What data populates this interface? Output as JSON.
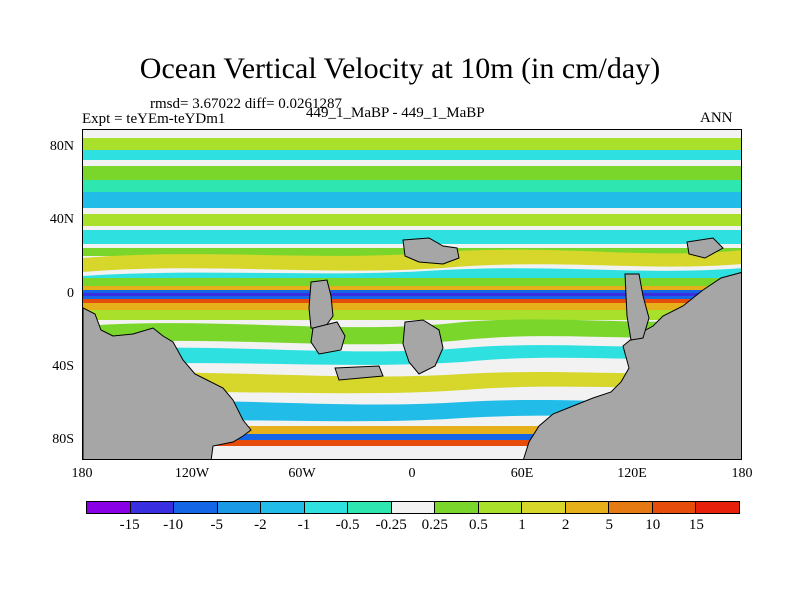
{
  "title": "Ocean Vertical Velocity at 10m (in cm/day)",
  "stats": "rmsd= 3.67022 diff= 0.0261287",
  "expt": "Expt = teYEm-teYDm1",
  "cases": "449_1_MaBP - 449_1_MaBP",
  "season": "ANN",
  "lat_ticks": [
    "80N",
    "40N",
    "0",
    "40S",
    "80S"
  ],
  "lon_ticks": [
    "180",
    "120W",
    "60W",
    "0",
    "60E",
    "120E",
    "180"
  ],
  "colorbar": {
    "colors": [
      "#8a00e6",
      "#3a2fe0",
      "#1466e6",
      "#1a9ae6",
      "#21bde8",
      "#2ee0e0",
      "#2ee6b0",
      "#f2f2f2",
      "#7ad62b",
      "#a8e02b",
      "#d6d62b",
      "#e6b01a",
      "#e67a12",
      "#e64c0a",
      "#e6200a"
    ],
    "labels": [
      "-15",
      "-10",
      "-5",
      "-2",
      "-1",
      "-0.5",
      "-0.25",
      "0.25",
      "0.5",
      "1",
      "2",
      "5",
      "10",
      "15"
    ]
  },
  "colors": {
    "land": "#a6a6a6",
    "outline": "#000000"
  }
}
